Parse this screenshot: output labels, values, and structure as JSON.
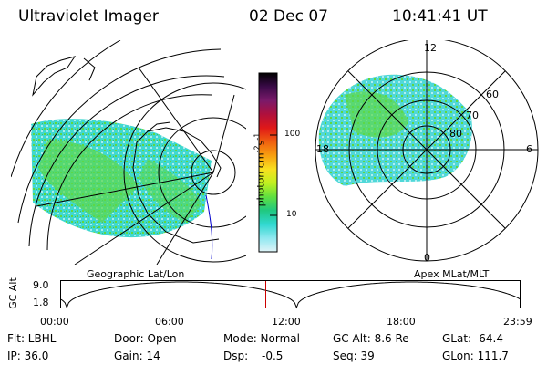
{
  "header": {
    "title": "Ultraviolet Imager",
    "date": "02 Dec 07",
    "time": "10:41:41 UT"
  },
  "panels": {
    "left_label": "Geographic Lat/Lon",
    "right_label": "Apex MLat/MLT",
    "polar_labels": {
      "top": "12",
      "bottom": "0",
      "left": "18",
      "right": "6",
      "lat60": "60",
      "lat70": "70",
      "lat80": "80"
    }
  },
  "colorbar": {
    "title": "photon cm",
    "exp1": "-2",
    "unit2": "s",
    "exp2": "-1",
    "tick_100": "100",
    "tick_10": "10",
    "scale": "log",
    "colors": [
      "#000000",
      "#3a0a48",
      "#7a1a6a",
      "#b0103c",
      "#e01818",
      "#f06010",
      "#f8a010",
      "#f8e020",
      "#c0f020",
      "#60e040",
      "#20c880",
      "#30d8d0",
      "#90e8f0",
      "#e0f4f8"
    ]
  },
  "altitude_plot": {
    "ylabel": "GC Alt",
    "y_top": "9.0",
    "y_bottom": "1.8",
    "x_ticks": [
      "00:00",
      "06:00",
      "12:00",
      "18:00",
      "23:59"
    ],
    "current_marker_hour": 10.69,
    "curve_color": "#000000",
    "marker_color": "#cc0000"
  },
  "info": {
    "row1": {
      "flt": "Flt: LBHL",
      "door": "Door: Open",
      "mode": "Mode: Normal",
      "gcalt": "GC Alt: 8.6 Re",
      "glat": "GLat: -64.4"
    },
    "row2": {
      "ip": "IP: 36.0",
      "gain": "Gain: 14",
      "dsp_label": "Dsp:",
      "dsp_value": "-0.5",
      "seq": "Seq: 39",
      "glon": "GLon: 111.7"
    }
  }
}
